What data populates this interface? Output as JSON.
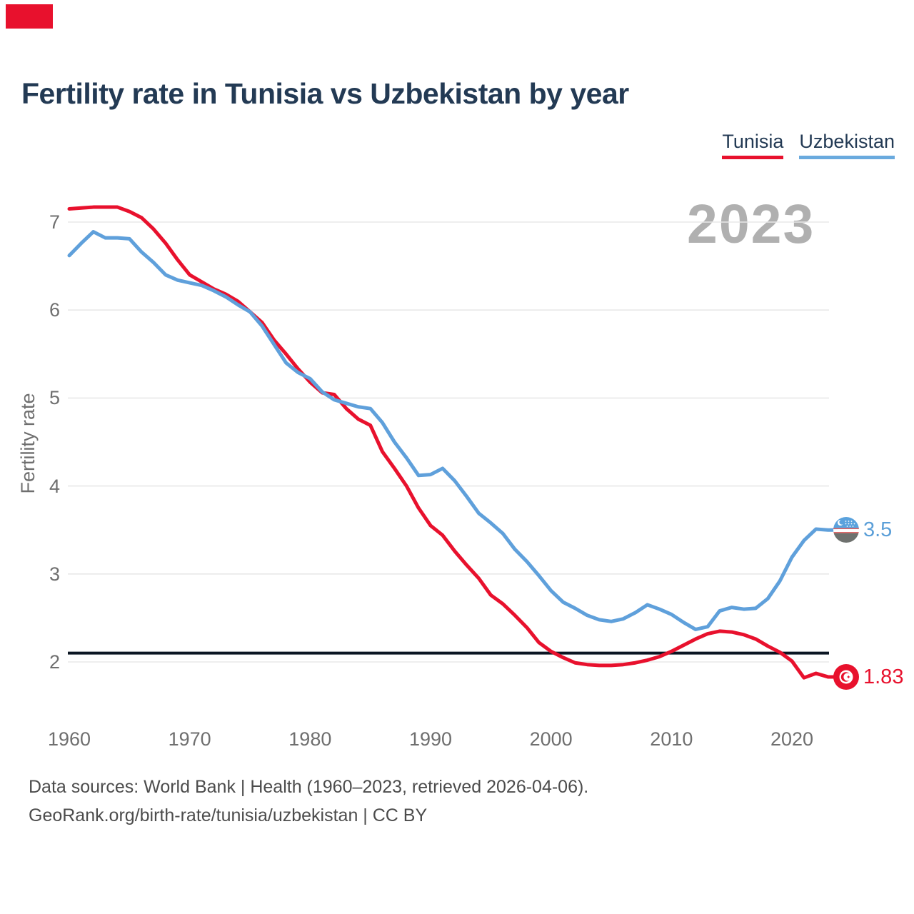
{
  "title": "Fertility rate in Tunisia vs Uzbekistan by year",
  "watermark_year": "2023",
  "colors": {
    "tunisia": "#e8112d",
    "uzbekistan": "#5fa0db",
    "title_text": "#233a54",
    "reference_line": "#0b1623",
    "gridline": "#e8e8e8",
    "tick_text": "#6f6f6f",
    "watermark": "#b0b0b0",
    "corner_marker": "#e8112d"
  },
  "header": {
    "legend": [
      {
        "label": "Tunisia",
        "color": "#e8112d"
      },
      {
        "label": "Uzbekistan",
        "color": "#6aaade"
      }
    ]
  },
  "y_axis": {
    "label": "Fertility rate",
    "ticks": [
      7,
      6,
      5,
      4,
      3,
      2
    ]
  },
  "x_axis": {
    "ticks": [
      1960,
      1970,
      1980,
      1990,
      2000,
      2010,
      2020
    ]
  },
  "end_labels": [
    {
      "series": "Uzbekistan",
      "value": "3.5"
    },
    {
      "series": "Tunisia",
      "value": "1.83"
    }
  ],
  "footer": {
    "line1": "Data sources: World Bank | Health (1960–2023, retrieved 2026-04-06).",
    "line2": "GeoRank.org/birth-rate/tunisia/uzbekistan | CC BY"
  },
  "chart_data": {
    "type": "line",
    "title": "Fertility rate in Tunisia vs Uzbekistan by year",
    "xlabel": "",
    "ylabel": "Fertility rate",
    "xlim": [
      1960,
      2023
    ],
    "ylim": [
      1.6,
      7.4
    ],
    "grid": "horizontal",
    "legend_position": "top-right",
    "reference_line": 2.1,
    "x": [
      1960,
      1961,
      1962,
      1963,
      1964,
      1965,
      1966,
      1967,
      1968,
      1969,
      1970,
      1971,
      1972,
      1973,
      1974,
      1975,
      1976,
      1977,
      1978,
      1979,
      1980,
      1981,
      1982,
      1983,
      1984,
      1985,
      1986,
      1987,
      1988,
      1989,
      1990,
      1991,
      1992,
      1993,
      1994,
      1995,
      1996,
      1997,
      1998,
      1999,
      2000,
      2001,
      2002,
      2003,
      2004,
      2005,
      2006,
      2007,
      2008,
      2009,
      2010,
      2011,
      2012,
      2013,
      2014,
      2015,
      2016,
      2017,
      2018,
      2019,
      2020,
      2021,
      2022,
      2023
    ],
    "series": [
      {
        "name": "Tunisia",
        "color": "#e8112d",
        "values": [
          7.15,
          7.16,
          7.17,
          7.17,
          7.17,
          7.12,
          7.05,
          6.92,
          6.76,
          6.57,
          6.4,
          6.32,
          6.24,
          6.18,
          6.1,
          5.98,
          5.86,
          5.66,
          5.5,
          5.33,
          5.18,
          5.06,
          5.04,
          4.88,
          4.76,
          4.69,
          4.39,
          4.2,
          4.0,
          3.75,
          3.55,
          3.44,
          3.26,
          3.1,
          2.95,
          2.76,
          2.66,
          2.53,
          2.39,
          2.22,
          2.12,
          2.05,
          1.99,
          1.97,
          1.96,
          1.96,
          1.97,
          1.99,
          2.02,
          2.06,
          2.12,
          2.19,
          2.26,
          2.32,
          2.35,
          2.34,
          2.31,
          2.26,
          2.18,
          2.11,
          2.01,
          1.82,
          1.87,
          1.83
        ]
      },
      {
        "name": "Uzbekistan",
        "color": "#5fa0db",
        "values": [
          6.62,
          6.76,
          6.89,
          6.82,
          6.82,
          6.81,
          6.66,
          6.54,
          6.4,
          6.34,
          6.31,
          6.28,
          6.22,
          6.15,
          6.06,
          5.98,
          5.82,
          5.61,
          5.4,
          5.29,
          5.22,
          5.07,
          4.98,
          4.94,
          4.9,
          4.88,
          4.72,
          4.5,
          4.32,
          4.12,
          4.13,
          4.2,
          4.06,
          3.88,
          3.69,
          3.58,
          3.46,
          3.28,
          3.14,
          2.98,
          2.81,
          2.68,
          2.61,
          2.53,
          2.48,
          2.46,
          2.49,
          2.56,
          2.65,
          2.6,
          2.54,
          2.45,
          2.37,
          2.4,
          2.58,
          2.62,
          2.6,
          2.61,
          2.72,
          2.92,
          3.19,
          3.38,
          3.51,
          3.5
        ]
      }
    ]
  }
}
